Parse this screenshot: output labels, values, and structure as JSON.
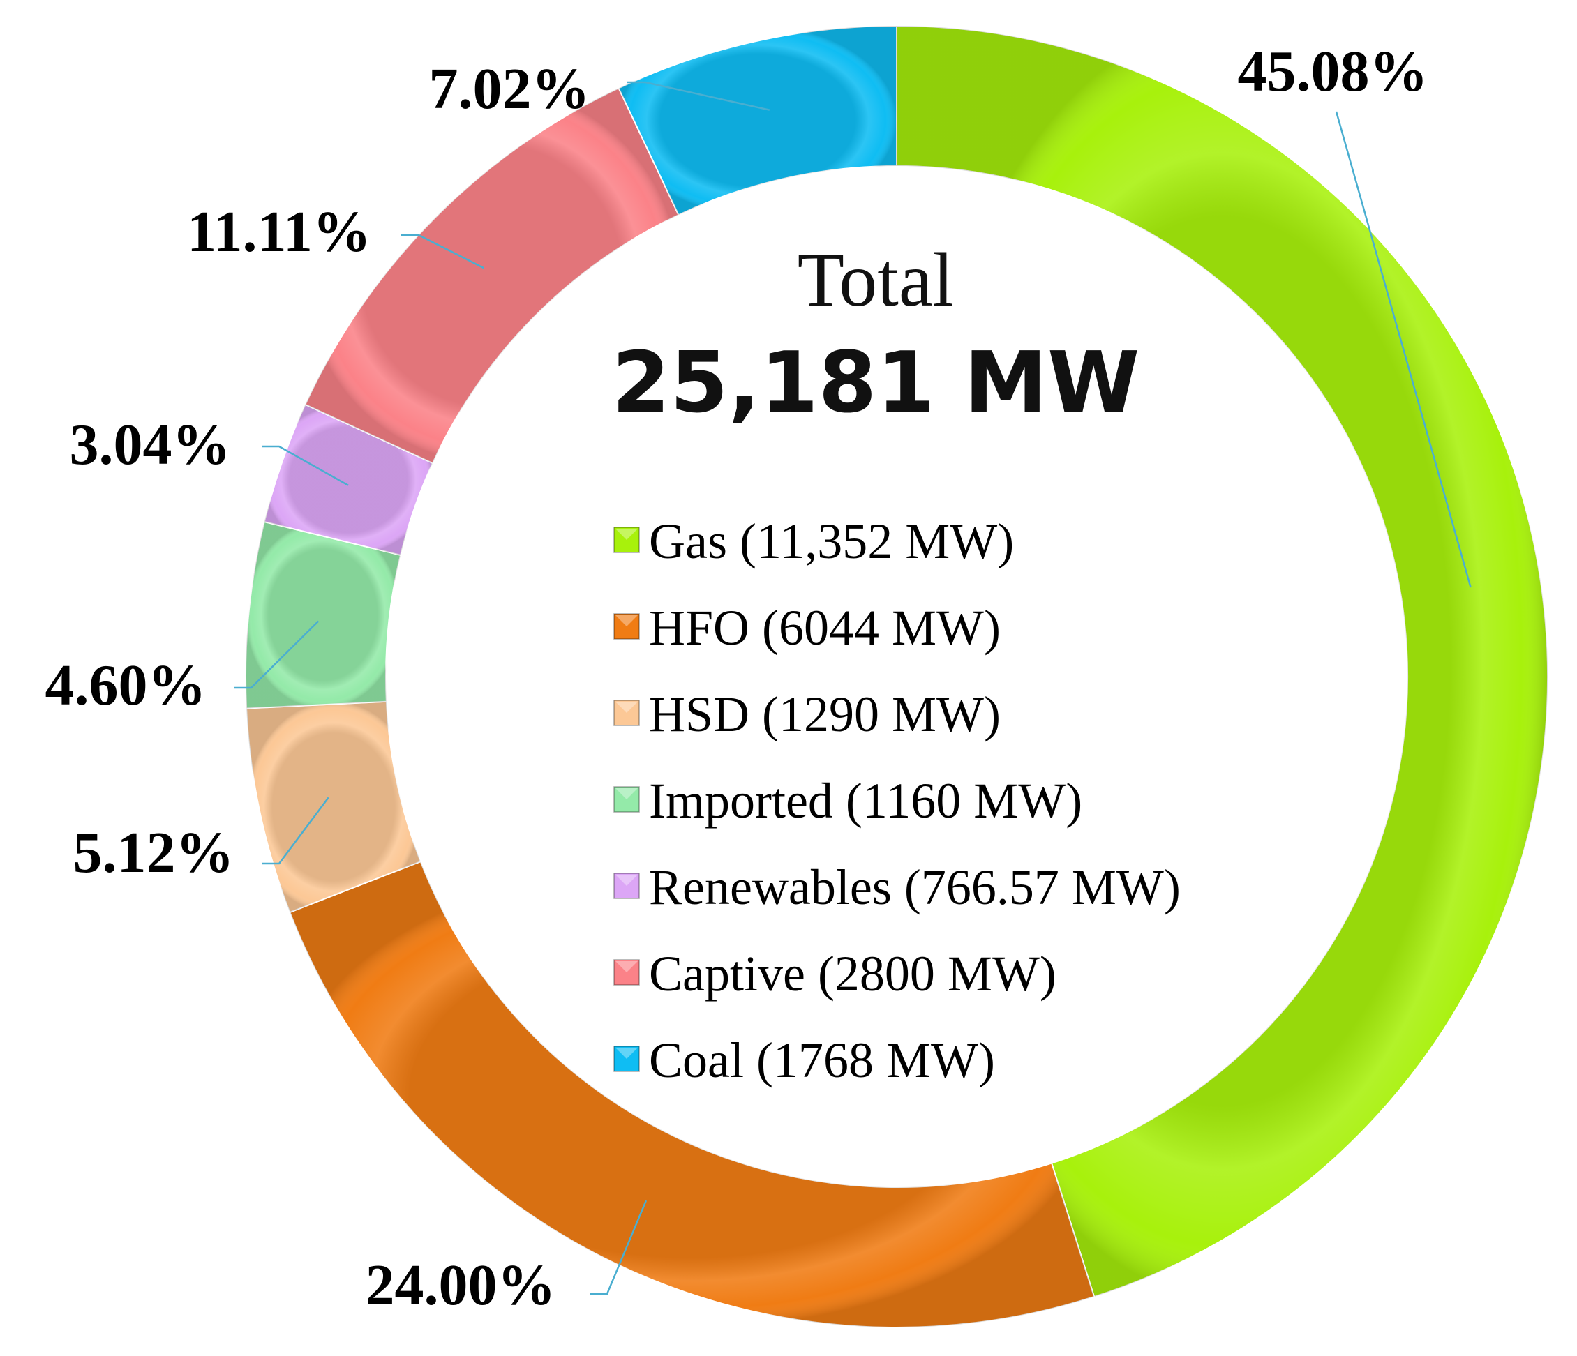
{
  "chart_data": {
    "type": "pie",
    "style": "donut",
    "center": {
      "title": "Total",
      "total": "25,181 MW"
    },
    "legend_position": "center",
    "slices": [
      {
        "name": "Gas (11,352 MW)",
        "value": 45.08,
        "label": "45.08%",
        "color": "#a8f10c"
      },
      {
        "name": "HFO (6044 MW)",
        "value": 24.0,
        "label": "24.00%",
        "color": "#f07c14"
      },
      {
        "name": "HSD (1290 MW)",
        "value": 5.12,
        "label": "5.12%",
        "color": "#fcc896"
      },
      {
        "name": "Imported (1160 MW)",
        "value": 4.6,
        "label": "4.60%",
        "color": "#94eaa9"
      },
      {
        "name": "Renewables (766.57 MW)",
        "value": 3.04,
        "label": "3.04%",
        "color": "#dca6f6"
      },
      {
        "name": "Captive (2800 MW)",
        "value": 11.11,
        "label": "11.11%",
        "color": "#fb8288"
      },
      {
        "name": "Coal (1768 MW)",
        "value": 7.02,
        "label": "7.02%",
        "color": "#0fbdf3"
      }
    ]
  }
}
